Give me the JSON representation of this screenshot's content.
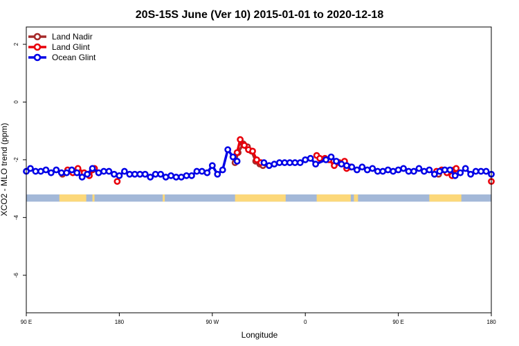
{
  "chart_data": {
    "type": "line",
    "title": "20S-15S June (Ver 10)   2015-01-01 to 2020-12-18",
    "xlabel": "Longitude",
    "ylabel": "XCO2 - MLO trend (ppm)",
    "xlim": [
      90,
      540
    ],
    "ylim": [
      -7.3,
      2.6
    ],
    "x_ticks": [
      {
        "value": 90,
        "label": "90 E"
      },
      {
        "value": 180,
        "label": "180"
      },
      {
        "value": 270,
        "label": "90 W"
      },
      {
        "value": 360,
        "label": "0"
      },
      {
        "value": 450,
        "label": "90 E"
      },
      {
        "value": 540,
        "label": "180"
      }
    ],
    "y_ticks": [
      {
        "value": 2,
        "label": "2"
      },
      {
        "value": 0,
        "label": "0"
      },
      {
        "value": -2,
        "label": "-2"
      },
      {
        "value": -4,
        "label": "-4"
      },
      {
        "value": -6,
        "label": "-6"
      }
    ],
    "legend_position": "top-left",
    "grid": false,
    "land_ocean_strip": {
      "y_range": [
        -3.45,
        -3.2
      ],
      "ocean_color": "#a3b8d8",
      "land_color": "#fcd87a",
      "land_segments": [
        [
          122,
          148
        ],
        [
          154,
          156
        ],
        [
          222,
          224
        ],
        [
          292,
          341
        ],
        [
          371,
          404
        ],
        [
          407,
          411
        ],
        [
          480,
          511
        ]
      ]
    },
    "series": [
      {
        "name": "Land Nadir",
        "color": "#a52a2a",
        "x": [
          125,
          154,
          292,
          295,
          300,
          304,
          308,
          312,
          316,
          319,
          489,
          504
        ],
        "y": [
          -2.5,
          -2.35,
          -2.1,
          -1.75,
          -1.45,
          -1.55,
          -1.7,
          -2.05,
          -2.15,
          -2.2,
          -2.5,
          -2.35
        ]
      },
      {
        "name": "Land Glint",
        "color": "#e8000b",
        "x": [
          130,
          135,
          140,
          146,
          151,
          156,
          178,
          294,
          297,
          301,
          305,
          309,
          313,
          317,
          371,
          374,
          379,
          383,
          388,
          393,
          398,
          400,
          404,
          487,
          492,
          497,
          502,
          506,
          540
        ],
        "y": [
          -2.35,
          -2.45,
          -2.3,
          -2.45,
          -2.55,
          -2.3,
          -2.75,
          -1.75,
          -1.3,
          -1.5,
          -1.65,
          -1.7,
          -2.0,
          -2.1,
          -1.85,
          -1.95,
          -1.95,
          -2.0,
          -2.2,
          -2.1,
          -2.05,
          -2.3,
          -2.25,
          -2.4,
          -2.35,
          -2.45,
          -2.55,
          -2.3,
          -2.75
        ]
      },
      {
        "name": "Ocean Glint",
        "color": "#0000e6",
        "x": [
          90,
          94,
          99,
          104,
          109,
          114,
          119,
          124,
          129,
          134,
          139,
          144,
          149,
          154,
          160,
          165,
          170,
          175,
          180,
          185,
          190,
          195,
          200,
          205,
          210,
          215,
          220,
          225,
          230,
          235,
          240,
          245,
          250,
          255,
          260,
          265,
          270,
          275,
          280,
          285,
          290,
          294,
          320,
          325,
          330,
          335,
          340,
          345,
          350,
          355,
          360,
          365,
          370,
          380,
          385,
          390,
          395,
          400,
          405,
          410,
          415,
          420,
          425,
          430,
          435,
          440,
          445,
          450,
          455,
          460,
          465,
          470,
          475,
          480,
          485,
          490,
          495,
          500,
          505,
          510,
          515,
          520,
          525,
          530,
          535,
          540
        ],
        "y": [
          -2.4,
          -2.3,
          -2.4,
          -2.4,
          -2.35,
          -2.45,
          -2.35,
          -2.45,
          -2.45,
          -2.35,
          -2.45,
          -2.6,
          -2.5,
          -2.3,
          -2.45,
          -2.4,
          -2.4,
          -2.5,
          -2.55,
          -2.4,
          -2.5,
          -2.5,
          -2.5,
          -2.5,
          -2.6,
          -2.5,
          -2.5,
          -2.6,
          -2.55,
          -2.6,
          -2.6,
          -2.55,
          -2.55,
          -2.4,
          -2.4,
          -2.45,
          -2.2,
          -2.5,
          -2.35,
          -1.65,
          -1.9,
          -2.05,
          -2.1,
          -2.2,
          -2.15,
          -2.1,
          -2.1,
          -2.1,
          -2.1,
          -2.1,
          -2.0,
          -1.95,
          -2.15,
          -2.0,
          -1.9,
          -2.05,
          -2.15,
          -2.2,
          -2.25,
          -2.35,
          -2.25,
          -2.35,
          -2.3,
          -2.4,
          -2.4,
          -2.35,
          -2.4,
          -2.35,
          -2.3,
          -2.4,
          -2.4,
          -2.3,
          -2.4,
          -2.35,
          -2.5,
          -2.4,
          -2.35,
          -2.35,
          -2.55,
          -2.45,
          -2.3,
          -2.5,
          -2.4,
          -2.4,
          -2.4,
          -2.5
        ]
      }
    ]
  }
}
